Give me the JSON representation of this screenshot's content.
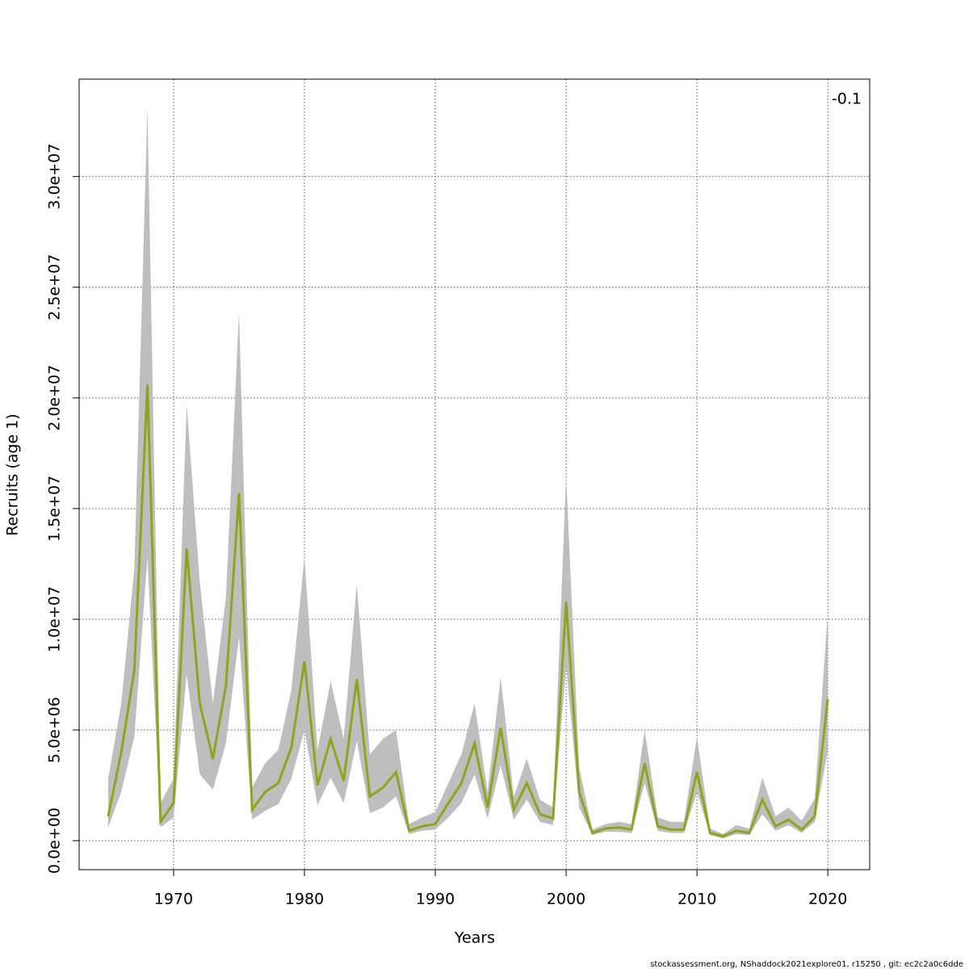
{
  "chart_data": {
    "type": "line",
    "xlabel": "Years",
    "ylabel": "Recruits (age 1)",
    "annotation": "-0.1",
    "footer": "stockassessment.org, NShaddock2021explore01, r15250 , git: ec2c2a0c6dde",
    "x": [
      1965,
      1966,
      1967,
      1968,
      1969,
      1970,
      1971,
      1972,
      1973,
      1974,
      1975,
      1976,
      1977,
      1978,
      1979,
      1980,
      1981,
      1982,
      1983,
      1984,
      1985,
      1986,
      1987,
      1988,
      1989,
      1990,
      1991,
      1992,
      1993,
      1994,
      1995,
      1996,
      1997,
      1998,
      1999,
      2000,
      2001,
      2002,
      2003,
      2004,
      2005,
      2006,
      2007,
      2008,
      2009,
      2010,
      2011,
      2012,
      2013,
      2014,
      2015,
      2016,
      2017,
      2018,
      2019,
      2020
    ],
    "values": [
      1100000,
      4000000,
      7700000,
      20600000,
      850000,
      1700000,
      13200000,
      6200000,
      3700000,
      7000000,
      15700000,
      1400000,
      2200000,
      2600000,
      4200000,
      8100000,
      2500000,
      4600000,
      2700000,
      7300000,
      2000000,
      2400000,
      3100000,
      450000,
      650000,
      750000,
      1700000,
      2600000,
      4400000,
      1500000,
      5100000,
      1400000,
      2600000,
      1200000,
      1000000,
      10800000,
      2200000,
      350000,
      550000,
      600000,
      500000,
      3500000,
      650000,
      500000,
      500000,
      3100000,
      350000,
      200000,
      450000,
      350000,
      1850000,
      650000,
      950000,
      500000,
      1100000,
      6400000
    ],
    "upper": [
      2800000,
      6200000,
      12300000,
      33100000,
      1700000,
      2800000,
      19700000,
      11700000,
      6200000,
      11000000,
      23900000,
      2400000,
      3500000,
      4100000,
      6800000,
      12800000,
      4100000,
      7200000,
      4600000,
      11600000,
      3900000,
      4600000,
      5000000,
      750000,
      1050000,
      1300000,
      2600000,
      3900000,
      6200000,
      2200000,
      7400000,
      2000000,
      3700000,
      1850000,
      1500000,
      16500000,
      3300000,
      500000,
      750000,
      850000,
      750000,
      5000000,
      1050000,
      850000,
      850000,
      4700000,
      550000,
      300000,
      700000,
      550000,
      2850000,
      1100000,
      1500000,
      900000,
      1900000,
      10300000
    ],
    "lower": [
      600000,
      2200000,
      4700000,
      12800000,
      600000,
      1050000,
      7500000,
      3000000,
      2300000,
      4400000,
      9200000,
      950000,
      1350000,
      1650000,
      2800000,
      5000000,
      1600000,
      2850000,
      1700000,
      4500000,
      1250000,
      1500000,
      2000000,
      300000,
      450000,
      500000,
      1050000,
      1700000,
      3000000,
      1000000,
      3400000,
      950000,
      1850000,
      850000,
      700000,
      7900000,
      1500000,
      250000,
      400000,
      400000,
      350000,
      2600000,
      450000,
      350000,
      350000,
      2200000,
      250000,
      100000,
      300000,
      250000,
      1200000,
      450000,
      700000,
      350000,
      850000,
      4050000
    ],
    "color": "#8fa31f",
    "band_color": "#bebebe",
    "xlim": [
      1962.78,
      2023.2
    ],
    "ylim": [
      -1310000,
      34400000
    ],
    "xticks": [
      1970,
      1980,
      1990,
      2000,
      2010,
      2020
    ],
    "yticks": [
      {
        "value": 0,
        "label": "0.0e+00"
      },
      {
        "value": 5000000,
        "label": "5.0e+06"
      },
      {
        "value": 10000000,
        "label": "1.0e+07"
      },
      {
        "value": 15000000,
        "label": "1.5e+07"
      },
      {
        "value": 20000000,
        "label": "2.0e+07"
      },
      {
        "value": 25000000,
        "label": "2.5e+07"
      },
      {
        "value": 30000000,
        "label": "3.0e+07"
      }
    ],
    "grid": true
  }
}
